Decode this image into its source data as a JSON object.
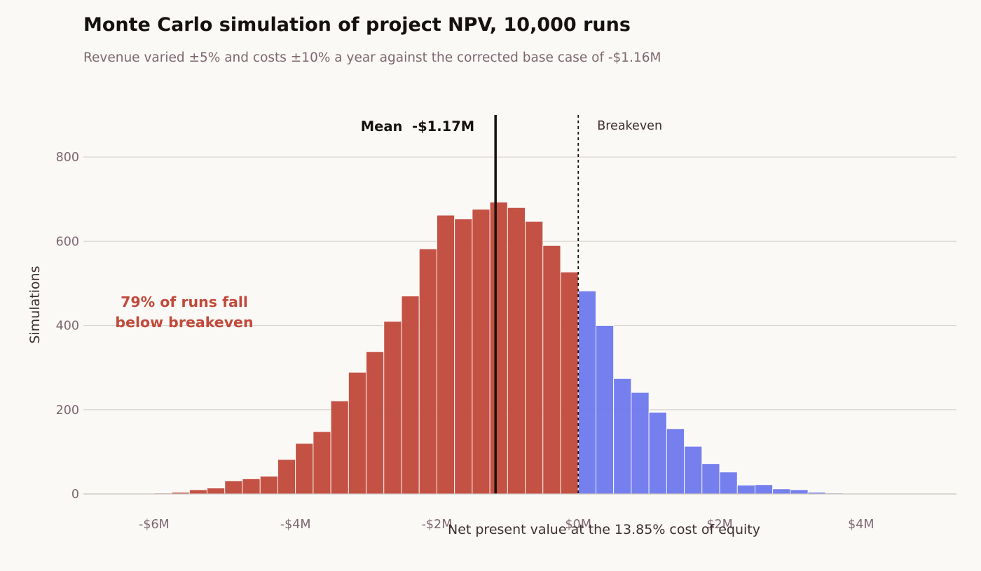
{
  "page": {
    "title": "Monte Carlo simulation of project NPV, 10,000 runs",
    "subtitle": "Revenue varied ±5% and costs ±10% a year against the corrected base case of -$1.16M"
  },
  "colors": {
    "background": "#fbf9f6",
    "below_breakeven": "#c0493a",
    "above_breakeven": "#6e78ec",
    "mean_line": "#1a120c",
    "grid": "#d9d5d1",
    "tick_text": "#7d6670",
    "label_text": "#3e2e32"
  },
  "chart_data": {
    "type": "bar",
    "title": "Monte Carlo simulation of project NPV, 10,000 runs",
    "subtitle": "Revenue varied ±5% and costs ±10% a year against the corrected base case of -$1.16M",
    "xlabel": "Net present value at the 13.85% cost of equity",
    "ylabel": "Simulations",
    "xlim": [
      -7.0,
      5.35
    ],
    "ylim": [
      0,
      900
    ],
    "grid": "horizontal",
    "bin_width": 0.25,
    "bin_left_edges": [
      -6.25,
      -6.0,
      -5.75,
      -5.5,
      -5.25,
      -5.0,
      -4.75,
      -4.5,
      -4.25,
      -4.0,
      -3.75,
      -3.5,
      -3.25,
      -3.0,
      -2.75,
      -2.5,
      -2.25,
      -2.0,
      -1.75,
      -1.5,
      -1.25,
      -1.0,
      -0.75,
      -0.5,
      -0.25,
      0.0,
      0.25,
      0.5,
      0.75,
      1.0,
      1.25,
      1.5,
      1.75,
      2.0,
      2.25,
      2.5,
      2.75,
      3.0,
      3.25,
      3.5,
      3.75
    ],
    "values": [
      1,
      2,
      4,
      10,
      14,
      31,
      36,
      42,
      82,
      120,
      148,
      221,
      289,
      338,
      410,
      470,
      582,
      662,
      653,
      676,
      693,
      680,
      647,
      590,
      527,
      482,
      400,
      274,
      241,
      194,
      155,
      113,
      72,
      52,
      21,
      22,
      12,
      10,
      4,
      2,
      1
    ],
    "breakeven_x": 0,
    "x_ticks": [
      {
        "value": -6,
        "label": "-$6M"
      },
      {
        "value": -4,
        "label": "-$4M"
      },
      {
        "value": -2,
        "label": "-$2M"
      },
      {
        "value": 0,
        "label": "$0M"
      },
      {
        "value": 2,
        "label": "$2M"
      },
      {
        "value": 4,
        "label": "$4M"
      }
    ],
    "y_ticks": [
      {
        "value": 0,
        "label": "0"
      },
      {
        "value": 200,
        "label": "200"
      },
      {
        "value": 400,
        "label": "400"
      },
      {
        "value": 600,
        "label": "600"
      },
      {
        "value": 800,
        "label": "800"
      }
    ],
    "mean": {
      "value": -1.17,
      "label": "Mean  -$1.17M"
    },
    "breakeven": {
      "value": 0,
      "label": "Breakeven"
    },
    "annotation": {
      "lines": [
        "79% of runs fall",
        "below breakeven"
      ]
    }
  }
}
